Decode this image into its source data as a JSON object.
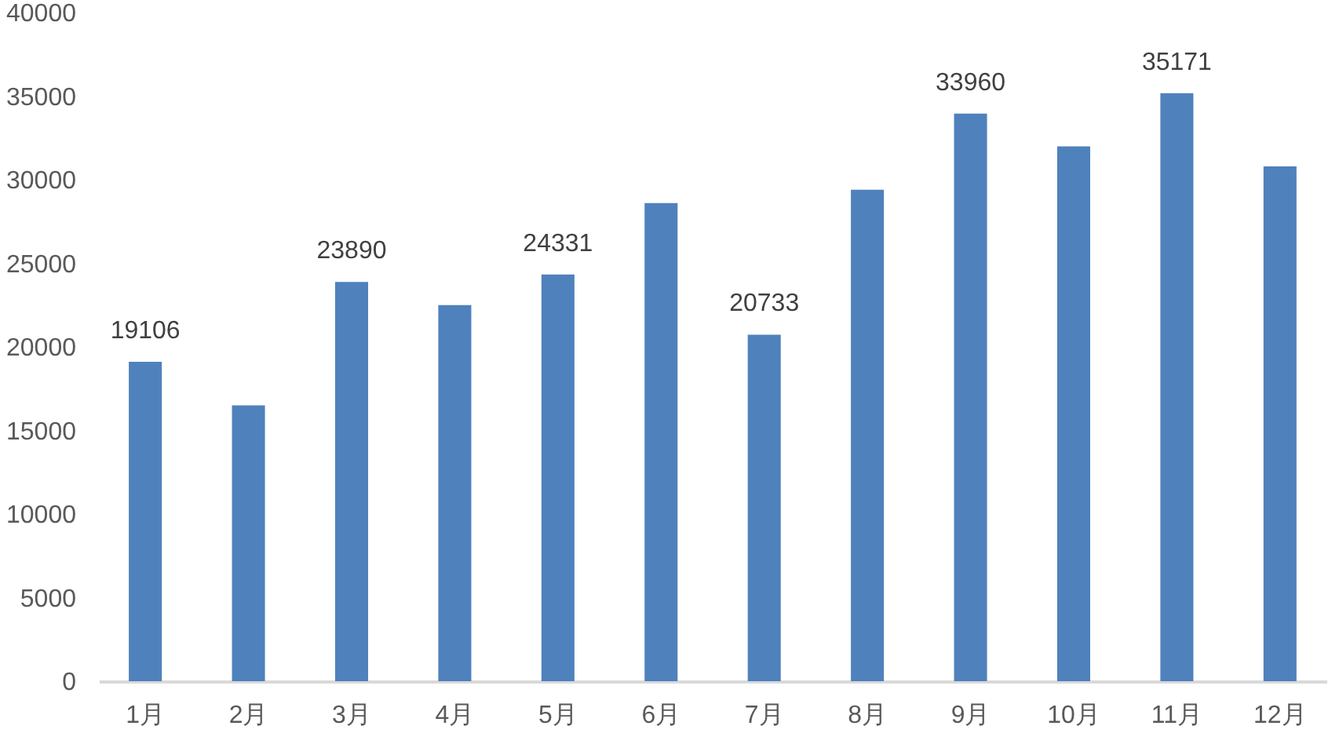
{
  "chart_data": {
    "type": "bar",
    "categories": [
      "1月",
      "2月",
      "3月",
      "4月",
      "5月",
      "6月",
      "7月",
      "8月",
      "9月",
      "10月",
      "11月",
      "12月"
    ],
    "values": [
      19106,
      16500,
      23890,
      22500,
      24331,
      28600,
      20733,
      29400,
      33960,
      32000,
      35171,
      30800
    ],
    "value_labels": [
      "19106",
      null,
      "23890",
      null,
      "24331",
      null,
      "20733",
      null,
      "33960",
      null,
      "35171",
      null
    ],
    "color": "#4f81bd",
    "ylim": [
      0,
      40000
    ],
    "yticks": [
      0,
      5000,
      10000,
      15000,
      20000,
      25000,
      30000,
      35000,
      40000
    ],
    "grid": false
  }
}
